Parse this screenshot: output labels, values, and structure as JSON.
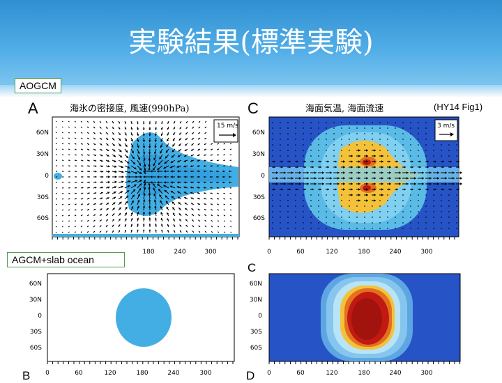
{
  "title": "実験結果(標準実験)",
  "tags": {
    "aogcm": "AOGCM",
    "agcm": "AGCM+slab ocean"
  },
  "reference": "(HY14 Fig1)",
  "panels": {
    "A": {
      "letter": "A",
      "title": "海氷の密接度, 風速(990hPa)",
      "vector_scale": "15 m/s"
    },
    "C": {
      "letter": "C",
      "title": "海面気温, 海面流速",
      "vector_scale": "3 m/s"
    },
    "C2": {
      "letter": "C"
    },
    "B": {
      "letter": "B"
    },
    "D": {
      "letter": "D"
    }
  },
  "axes": {
    "lat_ticks": [
      "60N",
      "30N",
      "0",
      "30S",
      "60S"
    ],
    "lon_ticks_top": [
      "180",
      "240",
      "300"
    ],
    "lon_ticks_full": [
      "0",
      "60",
      "120",
      "180",
      "240",
      "300"
    ]
  },
  "colors": {
    "ice": "#43aee4",
    "ocean_deep": "#2654c6",
    "warm": "#f4c23a",
    "hot": "#c11a12"
  }
}
